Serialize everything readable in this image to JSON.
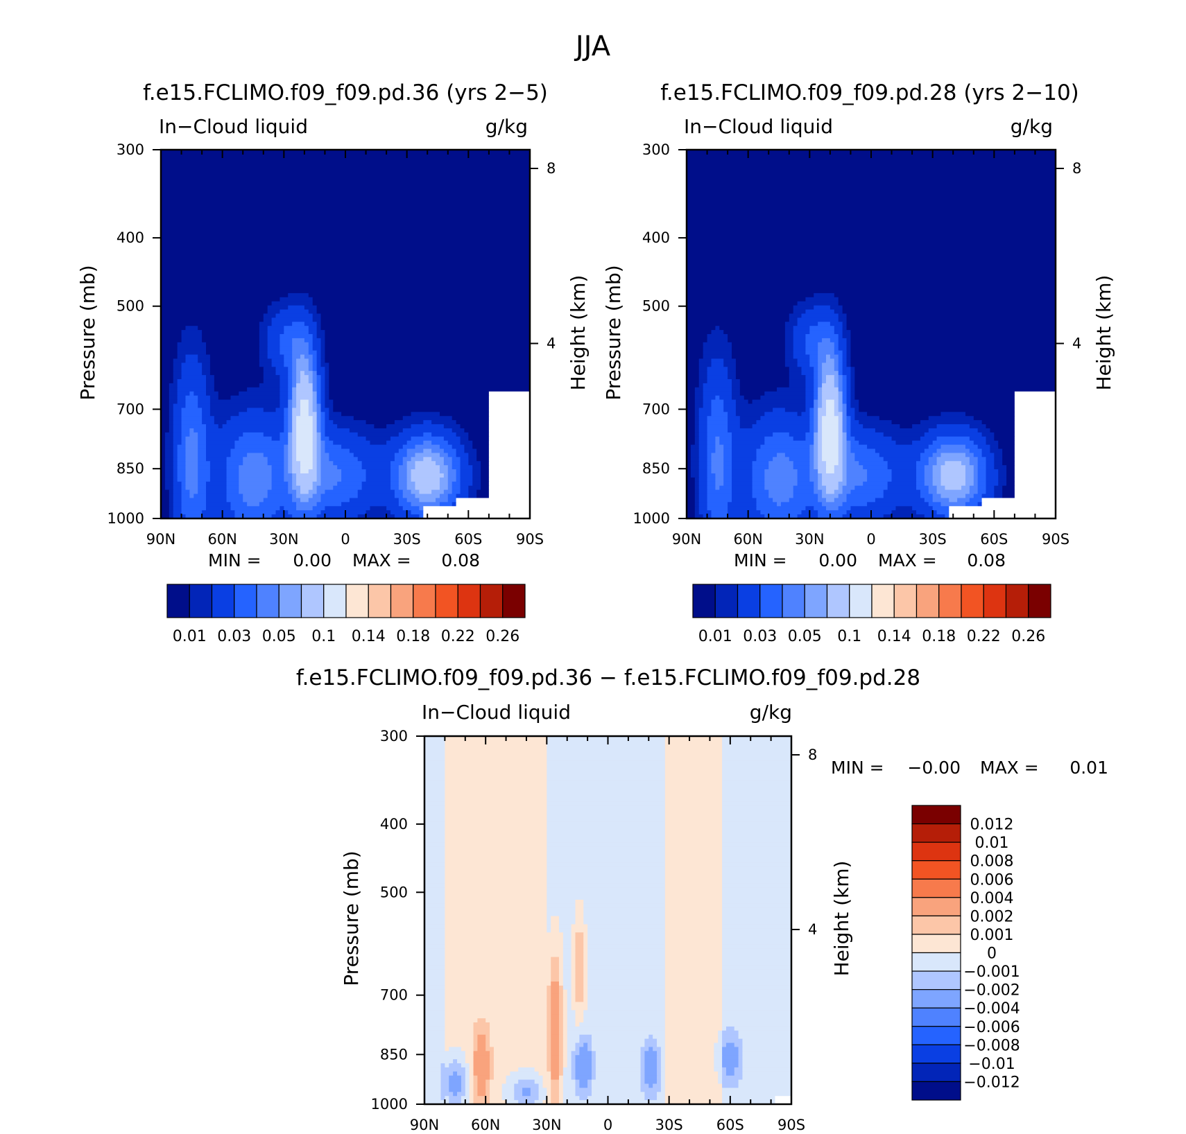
{
  "figure": {
    "title": "JJA"
  },
  "colors": {
    "abs_levels": [
      "#000e8a",
      "#0225b8",
      "#0a3fe3",
      "#2563ff",
      "#4f82ff",
      "#7ea5ff",
      "#afc6ff",
      "#d9e7fb",
      "#fde6d4",
      "#fcc6a8",
      "#f9a37d",
      "#f77a4c",
      "#f25423",
      "#dd3411",
      "#b51e08",
      "#7a0000"
    ],
    "diff_levels": [
      "#000e8a",
      "#0225b8",
      "#0a3fe3",
      "#2563ff",
      "#4f82ff",
      "#7ea5ff",
      "#afc6ff",
      "#d9e7fb",
      "#fde6d4",
      "#fcc6a8",
      "#f9a37d",
      "#f77a4c",
      "#f25423",
      "#dd3411",
      "#b51e08",
      "#7a0000"
    ]
  },
  "chart_data": [
    {
      "type": "heatmap",
      "id": "panel-left",
      "title": "f.e15.FCLIMO.f09_f09.pd.36 (yrs 2-5)",
      "subtitle_left": "In-Cloud liquid",
      "subtitle_right": "g/kg",
      "ylabel": "Pressure (mb)",
      "ylabel_right": "Height (km)",
      "x_ticks": [
        "90N",
        "60N",
        "30N",
        "0",
        "30S",
        "60S",
        "90S"
      ],
      "x_lim": [
        90,
        -90
      ],
      "y_ticks": [
        300,
        400,
        500,
        700,
        850,
        1000
      ],
      "y_lim": [
        1000,
        300
      ],
      "y_scale": "log",
      "right_ticks": [
        "8",
        "4"
      ],
      "stats": {
        "min_label": "MIN =",
        "min": "0.00",
        "max_label": "MAX =",
        "max": "0.08"
      },
      "colorbar_labels": [
        "0.01",
        "0.03",
        "0.05",
        "0.1",
        "0.14",
        "0.18",
        "0.22",
        "0.26"
      ],
      "field": [
        {
          "lat": 20,
          "p": 740,
          "amp": 0.08,
          "sx": 5,
          "sy": 0.16
        },
        {
          "lat": 45,
          "p": 880,
          "amp": 0.035,
          "sx": 12,
          "sy": 0.14
        },
        {
          "lat": 75,
          "p": 830,
          "amp": 0.032,
          "sx": 6,
          "sy": 0.22
        },
        {
          "lat": -40,
          "p": 870,
          "amp": 0.06,
          "sx": 11,
          "sy": 0.09
        },
        {
          "lat": 5,
          "p": 870,
          "amp": 0.03,
          "sx": 14,
          "sy": 0.1
        },
        {
          "lat": 28,
          "p": 560,
          "amp": 0.02,
          "sx": 8,
          "sy": 0.08
        }
      ],
      "missing_below": [
        {
          "lat_max": -70,
          "p": 660
        },
        {
          "lat_max": -55,
          "p": 930
        },
        {
          "lat_max": -38,
          "p": 965
        }
      ]
    },
    {
      "type": "heatmap",
      "id": "panel-right",
      "title": "f.e15.FCLIMO.f09_f09.pd.28 (yrs 2-10)",
      "subtitle_left": "In-Cloud liquid",
      "subtitle_right": "g/kg",
      "ylabel": "Pressure (mb)",
      "ylabel_right": "Height (km)",
      "x_ticks": [
        "90N",
        "60N",
        "30N",
        "0",
        "30S",
        "60S",
        "90S"
      ],
      "x_lim": [
        90,
        -90
      ],
      "y_ticks": [
        300,
        400,
        500,
        700,
        850,
        1000
      ],
      "y_lim": [
        1000,
        300
      ],
      "y_scale": "log",
      "right_ticks": [
        "8",
        "4"
      ],
      "stats": {
        "min_label": "MIN =",
        "min": "0.00",
        "max_label": "MAX =",
        "max": "0.08"
      },
      "colorbar_labels": [
        "0.01",
        "0.03",
        "0.05",
        "0.1",
        "0.14",
        "0.18",
        "0.22",
        "0.26"
      ],
      "field": [
        {
          "lat": 20,
          "p": 740,
          "amp": 0.079,
          "sx": 5,
          "sy": 0.16
        },
        {
          "lat": 45,
          "p": 880,
          "amp": 0.034,
          "sx": 12,
          "sy": 0.14
        },
        {
          "lat": 75,
          "p": 830,
          "amp": 0.03,
          "sx": 6,
          "sy": 0.22
        },
        {
          "lat": -40,
          "p": 870,
          "amp": 0.058,
          "sx": 11,
          "sy": 0.09
        },
        {
          "lat": 5,
          "p": 870,
          "amp": 0.03,
          "sx": 14,
          "sy": 0.1
        },
        {
          "lat": 28,
          "p": 560,
          "amp": 0.02,
          "sx": 8,
          "sy": 0.08
        }
      ],
      "missing_below": [
        {
          "lat_max": -70,
          "p": 660
        },
        {
          "lat_max": -55,
          "p": 930
        },
        {
          "lat_max": -38,
          "p": 965
        }
      ]
    },
    {
      "type": "heatmap",
      "id": "panel-diff",
      "title": "f.e15.FCLIMO.f09_f09.pd.36 - f.e15.FCLIMO.f09_f09.pd.28",
      "subtitle_left": "In-Cloud liquid",
      "subtitle_right": "g/kg",
      "ylabel": "Pressure (mb)",
      "ylabel_right": "Height (km)",
      "x_ticks": [
        "90N",
        "60N",
        "30N",
        "0",
        "30S",
        "60S",
        "90S"
      ],
      "x_lim": [
        90,
        -90
      ],
      "y_ticks": [
        300,
        400,
        500,
        700,
        850,
        1000
      ],
      "y_lim": [
        1000,
        300
      ],
      "y_scale": "log",
      "right_ticks": [
        "8",
        "4"
      ],
      "stats": {
        "min_label": "MIN =",
        "min": "-0.00",
        "max_label": "MAX =",
        "max": "0.01"
      },
      "colorbar_labels": [
        "0.012",
        "0.01",
        "0.008",
        "0.006",
        "0.004",
        "0.002",
        "0.001",
        "0",
        "-0.001",
        "-0.002",
        "-0.004",
        "-0.006",
        "-0.008",
        "-0.01",
        "-0.012"
      ],
      "positive_bands": [
        {
          "lat_from": 80,
          "lat_to": 30
        },
        {
          "lat_from": -28,
          "lat_to": -55
        }
      ],
      "anomalies": [
        {
          "lat": 26,
          "p": 790,
          "amp": 0.004,
          "sx": 2.5,
          "sy": 0.18
        },
        {
          "lat": 62,
          "p": 880,
          "amp": 0.003,
          "sx": 3,
          "sy": 0.09
        },
        {
          "lat": 14,
          "p": 640,
          "amp": 0.0025,
          "sx": 2,
          "sy": 0.12
        },
        {
          "lat": 75,
          "p": 930,
          "amp": -0.003,
          "sx": 4,
          "sy": 0.06
        },
        {
          "lat": 12,
          "p": 880,
          "amp": -0.0035,
          "sx": 3,
          "sy": 0.06
        },
        {
          "lat": -21,
          "p": 890,
          "amp": -0.003,
          "sx": 3,
          "sy": 0.06
        },
        {
          "lat": -60,
          "p": 860,
          "amp": -0.0025,
          "sx": 4,
          "sy": 0.06
        },
        {
          "lat": 40,
          "p": 960,
          "amp": -0.0025,
          "sx": 6,
          "sy": 0.04
        }
      ],
      "missing_below": [
        {
          "lat_max": -82,
          "p": 975
        }
      ]
    }
  ]
}
